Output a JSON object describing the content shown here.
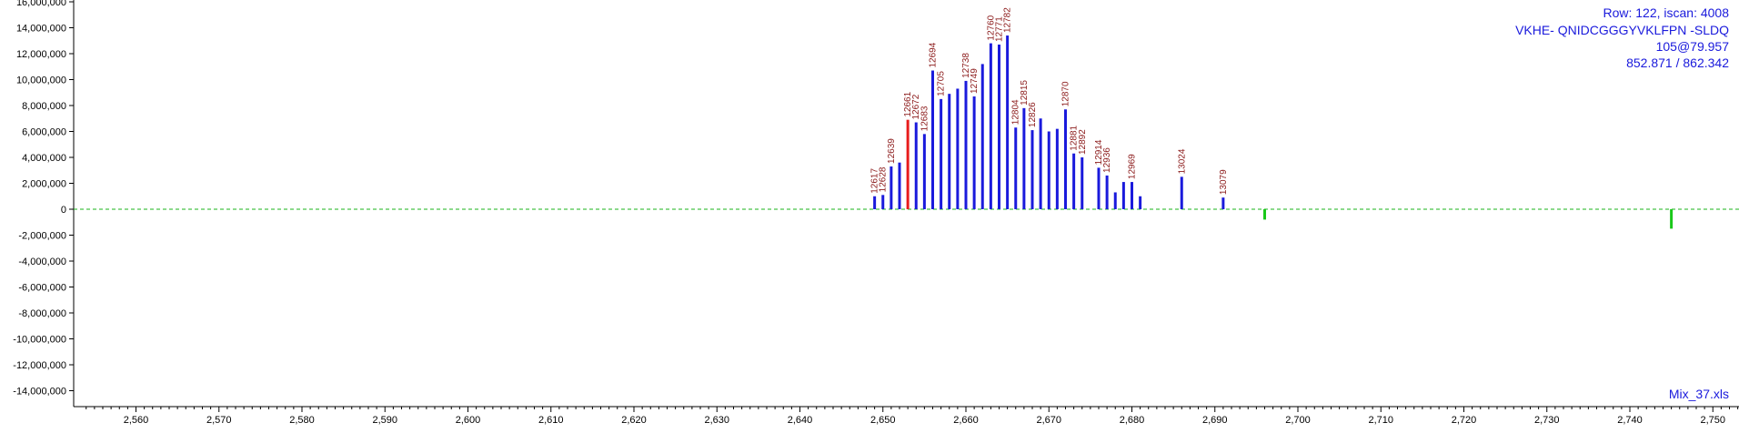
{
  "info_lines": [
    "Row: 122, iscan: 4008",
    "VKHE- QNIDCGGGYVKLFPN -SLDQ",
    "105@79.957",
    "852.871 / 862.342"
  ],
  "file_name": "Mix_37.xls",
  "colors": {
    "bar": "#1a1adc",
    "highlight": "#e81c1c",
    "negative": "#19c819",
    "label": "#8b1a1a",
    "zero_line": "#19b419",
    "info": "#1a1adc",
    "axis": "#000000"
  },
  "chart_data": {
    "type": "bar",
    "title": "",
    "xlabel": "",
    "ylabel": "",
    "xlim": [
      2553,
      2754
    ],
    "ylim": [
      -15000000,
      16000000
    ],
    "grid": false,
    "x_ticks": [
      2560,
      2570,
      2580,
      2590,
      2600,
      2610,
      2620,
      2630,
      2640,
      2650,
      2660,
      2670,
      2680,
      2690,
      2700,
      2710,
      2720,
      2730,
      2740,
      2750
    ],
    "x_tick_labels": [
      "2,560",
      "2,570",
      "2,580",
      "2,590",
      "2,600",
      "2,610",
      "2,620",
      "2,630",
      "2,640",
      "2,650",
      "2,660",
      "2,670",
      "2,680",
      "2,690",
      "2,700",
      "2,710",
      "2,720",
      "2,730",
      "2,740",
      "2,750"
    ],
    "y_ticks": [
      16000000,
      14000000,
      12000000,
      10000000,
      8000000,
      6000000,
      4000000,
      2000000,
      0,
      -2000000,
      -4000000,
      -6000000,
      -8000000,
      -10000000,
      -12000000,
      -14000000
    ],
    "y_tick_labels": [
      "16,000,000",
      "14,000,000",
      "12,000,000",
      "10,000,000",
      "8,000,000",
      "6,000,000",
      "4,000,000",
      "2,000,000",
      "0",
      "-2,000,000",
      "-4,000,000",
      "-6,000,000",
      "-8,000,000",
      "-10,000,000",
      "-12,000,000",
      "-14,000,000"
    ],
    "zero_line": true,
    "bars": [
      {
        "x": 2649.0,
        "y": 1000000,
        "label": "12617",
        "color": "bar"
      },
      {
        "x": 2650.0,
        "y": 1100000,
        "label": "12628",
        "color": "bar"
      },
      {
        "x": 2651.0,
        "y": 3300000,
        "label": "12639",
        "color": "bar"
      },
      {
        "x": 2652.0,
        "y": 3600000,
        "label": "",
        "color": "bar"
      },
      {
        "x": 2653.0,
        "y": 6900000,
        "label": "12661",
        "color": "highlight"
      },
      {
        "x": 2654.0,
        "y": 6700000,
        "label": "12672",
        "color": "bar"
      },
      {
        "x": 2655.0,
        "y": 5800000,
        "label": "12683",
        "color": "bar"
      },
      {
        "x": 2656.0,
        "y": 10700000,
        "label": "12694",
        "color": "bar"
      },
      {
        "x": 2657.0,
        "y": 8500000,
        "label": "12705",
        "color": "bar"
      },
      {
        "x": 2658.0,
        "y": 8900000,
        "label": "",
        "color": "bar"
      },
      {
        "x": 2659.0,
        "y": 9300000,
        "label": "",
        "color": "bar"
      },
      {
        "x": 2660.0,
        "y": 9900000,
        "label": "12738",
        "color": "bar"
      },
      {
        "x": 2661.0,
        "y": 8700000,
        "label": "12749",
        "color": "bar"
      },
      {
        "x": 2662.0,
        "y": 11200000,
        "label": "",
        "color": "bar"
      },
      {
        "x": 2663.0,
        "y": 12800000,
        "label": "12760",
        "color": "bar"
      },
      {
        "x": 2664.0,
        "y": 12700000,
        "label": "12771",
        "color": "bar"
      },
      {
        "x": 2665.0,
        "y": 13400000,
        "label": "12782",
        "color": "bar"
      },
      {
        "x": 2666.0,
        "y": 6300000,
        "label": "12804",
        "color": "bar"
      },
      {
        "x": 2667.0,
        "y": 7800000,
        "label": "12815",
        "color": "bar"
      },
      {
        "x": 2668.0,
        "y": 6100000,
        "label": "12826",
        "color": "bar"
      },
      {
        "x": 2669.0,
        "y": 7000000,
        "label": "",
        "color": "bar"
      },
      {
        "x": 2670.0,
        "y": 6000000,
        "label": "",
        "color": "bar"
      },
      {
        "x": 2671.0,
        "y": 6200000,
        "label": "",
        "color": "bar"
      },
      {
        "x": 2672.0,
        "y": 7700000,
        "label": "12870",
        "color": "bar"
      },
      {
        "x": 2673.0,
        "y": 4300000,
        "label": "12881",
        "color": "bar"
      },
      {
        "x": 2674.0,
        "y": 4000000,
        "label": "12892",
        "color": "bar"
      },
      {
        "x": 2676.0,
        "y": 3200000,
        "label": "12914",
        "color": "bar"
      },
      {
        "x": 2677.0,
        "y": 2600000,
        "label": "12936",
        "color": "bar"
      },
      {
        "x": 2678.0,
        "y": 1300000,
        "label": "",
        "color": "bar"
      },
      {
        "x": 2679.0,
        "y": 2100000,
        "label": "",
        "color": "bar"
      },
      {
        "x": 2680.0,
        "y": 2100000,
        "label": "12969",
        "color": "bar"
      },
      {
        "x": 2681.0,
        "y": 1000000,
        "label": "",
        "color": "bar"
      },
      {
        "x": 2686.0,
        "y": 2500000,
        "label": "13024",
        "color": "bar"
      },
      {
        "x": 2691.0,
        "y": 900000,
        "label": "13079",
        "color": "bar"
      },
      {
        "x": 2696.0,
        "y": -800000,
        "label": "",
        "color": "negative"
      },
      {
        "x": 2745.0,
        "y": -1500000,
        "label": "",
        "color": "negative"
      }
    ]
  }
}
